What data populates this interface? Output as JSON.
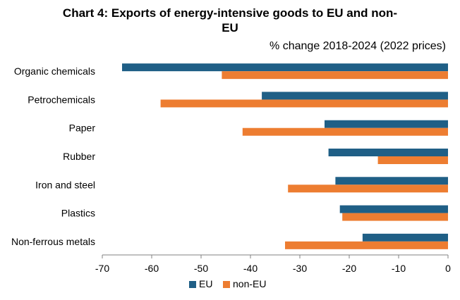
{
  "title_line1": "Chart 4: Exports of energy-intensive goods to EU and non-",
  "title_line2": "EU",
  "subtitle": "% change 2018-2024 (2022 prices)",
  "chart_data": {
    "type": "bar",
    "orientation": "horizontal",
    "title": "Chart 4: Exports of energy-intensive goods to EU and non-EU",
    "subtitle": "% change 2018-2024 (2022 prices)",
    "categories": [
      "Organic chemicals",
      "Petrochemicals",
      "Paper",
      "Rubber",
      "Iron and steel",
      "Plastics",
      "Non-ferrous metals"
    ],
    "series": [
      {
        "name": "EU",
        "color": "#1F5F86",
        "values": [
          -66,
          -37.7,
          -25,
          -24.2,
          -22.8,
          -21.9,
          -17.3
        ]
      },
      {
        "name": "non-EU",
        "color": "#ED7D31",
        "values": [
          -45.8,
          -58.2,
          -41.6,
          -14.2,
          -32.4,
          -21.4,
          -33
        ]
      }
    ],
    "xlim": [
      -70,
      0
    ],
    "xticks": [
      -70,
      -60,
      -50,
      -40,
      -30,
      -20,
      -10,
      0
    ],
    "grid": false,
    "legend": "bottom"
  }
}
